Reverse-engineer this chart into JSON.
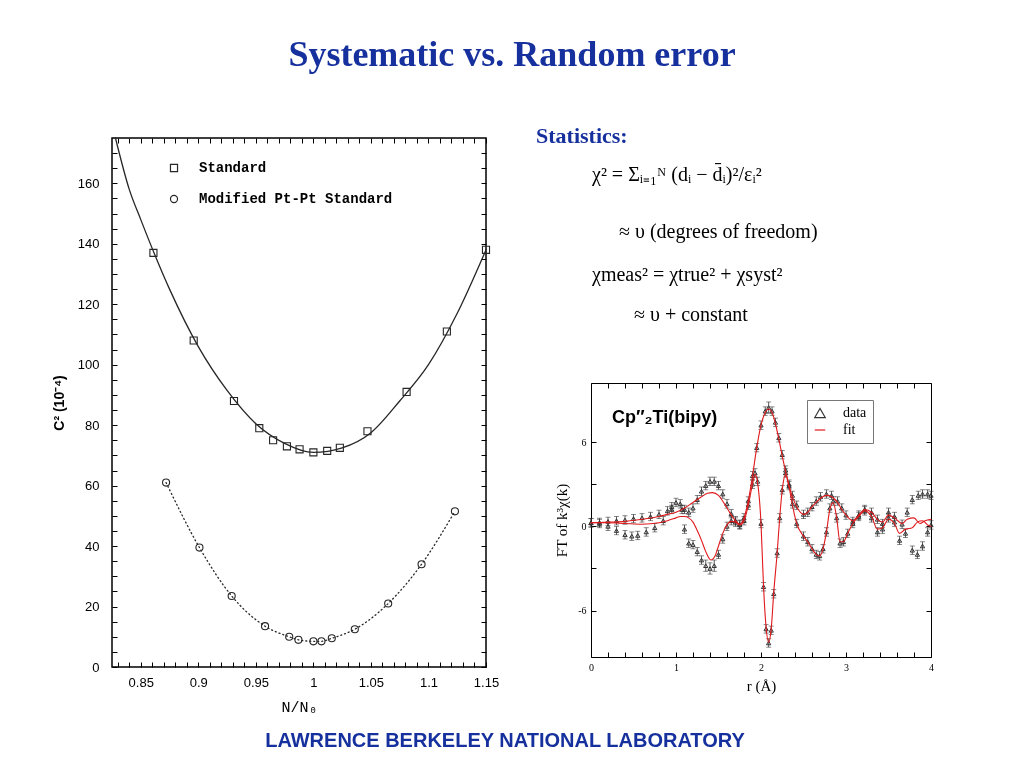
{
  "chart_data": [
    {
      "type": "other",
      "title": "Systematic vs. Random error"
    },
    {
      "type": "scatter",
      "xlabel": "N/N₀",
      "ylabel": "C² (10⁻⁴)",
      "xlim": [
        0.825,
        1.15
      ],
      "ylim": [
        0,
        175
      ],
      "legend": "top left",
      "xticks": [
        {
          "value": 0.83,
          "label": null
        },
        {
          "value": 0.84,
          "label": null
        },
        0.85,
        {
          "value": 0.86,
          "label": null
        },
        {
          "value": 0.87,
          "label": null
        },
        {
          "value": 0.88,
          "label": null
        },
        {
          "value": 0.89,
          "label": null
        },
        0.9,
        {
          "value": 0.91,
          "label": null
        },
        {
          "value": 0.92,
          "label": null
        },
        {
          "value": 0.93,
          "label": null
        },
        {
          "value": 0.94,
          "label": null
        },
        0.95,
        {
          "value": 0.96,
          "label": null
        },
        {
          "value": 0.97,
          "label": null
        },
        {
          "value": 0.98,
          "label": null
        },
        {
          "value": 0.99,
          "label": null
        },
        1,
        {
          "value": 1.01,
          "label": null
        },
        {
          "value": 1.02,
          "label": null
        },
        {
          "value": 1.03,
          "label": null
        },
        {
          "value": 1.04,
          "label": null
        },
        1.05,
        {
          "value": 1.06,
          "label": null
        },
        {
          "value": 1.07,
          "label": null
        },
        {
          "value": 1.08,
          "label": null
        },
        {
          "value": 1.09,
          "label": null
        },
        1.1,
        {
          "value": 1.11,
          "label": null
        },
        {
          "value": 1.12,
          "label": null
        },
        {
          "value": 1.13,
          "label": null
        },
        {
          "value": 1.14,
          "label": null
        },
        1.15
      ],
      "yticks": [
        0,
        {
          "value": 5,
          "label": null
        },
        {
          "value": 10,
          "label": null
        },
        {
          "value": 15,
          "label": null
        },
        20,
        {
          "value": 25,
          "label": null
        },
        {
          "value": 30,
          "label": null
        },
        {
          "value": 35,
          "label": null
        },
        40,
        {
          "value": 45,
          "label": null
        },
        {
          "value": 50,
          "label": null
        },
        {
          "value": 55,
          "label": null
        },
        60,
        {
          "value": 65,
          "label": null
        },
        {
          "value": 70,
          "label": null
        },
        {
          "value": 75,
          "label": null
        },
        80,
        {
          "value": 85,
          "label": null
        },
        {
          "value": 90,
          "label": null
        },
        {
          "value": 95,
          "label": null
        },
        100,
        {
          "value": 105,
          "label": null
        },
        {
          "value": 110,
          "label": null
        },
        {
          "value": 115,
          "label": null
        },
        120,
        {
          "value": 125,
          "label": null
        },
        {
          "value": 130,
          "label": null
        },
        {
          "value": 135,
          "label": null
        },
        140,
        {
          "value": 145,
          "label": null
        },
        {
          "value": 150,
          "label": null
        },
        {
          "value": 155,
          "label": null
        },
        160,
        {
          "value": 165,
          "label": null
        },
        {
          "value": 170,
          "label": null
        }
      ],
      "series": [
        {
          "name": "Standard",
          "type": "scatter",
          "marker": "square",
          "color": "#262626",
          "x": [
            0.861,
            0.896,
            0.931,
            0.953,
            0.965,
            0.977,
            0.988,
            1.0,
            1.012,
            1.023,
            1.047,
            1.081,
            1.116,
            1.15
          ],
          "values": [
            137,
            108,
            88,
            79,
            75,
            73,
            72,
            71,
            71.5,
            72.5,
            78,
            91,
            111,
            138
          ]
        },
        {
          "type": "line",
          "marker": "none",
          "line_style": "solid",
          "color": "#262626",
          "x": [
            0.828,
            0.84,
            0.85,
            0.875,
            0.9,
            0.925,
            0.95,
            0.975,
            1.0,
            1.025,
            1.05,
            1.075,
            1.1,
            1.125,
            1.15
          ],
          "values": [
            175,
            158,
            148,
            125,
            106,
            91.5,
            80.5,
            74,
            71,
            72.5,
            77.5,
            88,
            100,
            117,
            138
          ]
        },
        {
          "name": "Modified Pt-Pt Standard",
          "type": "line",
          "marker": "circle",
          "line_style": "dotted",
          "color": "#262626",
          "x": [
            0.872,
            0.901,
            0.929,
            0.958,
            0.979,
            0.987,
            1.0,
            1.007,
            1.016,
            1.036,
            1.065,
            1.094,
            1.123
          ],
          "values": [
            61,
            39.5,
            23.5,
            13.5,
            10,
            9,
            8.5,
            8.5,
            9.5,
            12.5,
            21,
            34,
            51.5
          ]
        }
      ]
    },
    {
      "type": "other",
      "title": "Statistics:",
      "annotations": [
        "χ² = Σᵢ₌₁ᴺ (dᵢ − d̄ᵢ)²/εᵢ²",
        "≈ υ (degrees of freedom)",
        "χmeas² = χtrue² + χsyst²",
        "≈ υ + constant"
      ]
    },
    {
      "type": "line",
      "xlabel": "r (Å)",
      "ylabel": "FT of k³χ(k)",
      "xlim": [
        0,
        4
      ],
      "ylim": [
        -9.3,
        10.2
      ],
      "legend": "top right",
      "annotations": [
        "Cp″₂Ti(bipy)"
      ],
      "xticks": [
        0,
        {
          "value": 0.2,
          "label": null
        },
        {
          "value": 0.4,
          "label": null
        },
        {
          "value": 0.6,
          "label": null
        },
        {
          "value": 0.8,
          "label": null
        },
        1,
        {
          "value": 1.2,
          "label": null
        },
        {
          "value": 1.4,
          "label": null
        },
        {
          "value": 1.6,
          "label": null
        },
        {
          "value": 1.8,
          "label": null
        },
        2,
        {
          "value": 2.2,
          "label": null
        },
        {
          "value": 2.4,
          "label": null
        },
        {
          "value": 2.6,
          "label": null
        },
        {
          "value": 2.8,
          "label": null
        },
        3,
        {
          "value": 3.2,
          "label": null
        },
        {
          "value": 3.4,
          "label": null
        },
        {
          "value": 3.6,
          "label": null
        },
        {
          "value": 3.8,
          "label": null
        },
        4
      ],
      "yticks": [
        -6,
        {
          "value": -3,
          "label": null
        },
        0,
        {
          "value": 3,
          "label": null
        },
        6
      ],
      "series": [
        {
          "name": "data",
          "type": "scatter",
          "marker": "triangle",
          "color": "#333333",
          "x": [
            0,
            0.1,
            0.2,
            0.3,
            0.4,
            0.5,
            0.6,
            0.7,
            0.8,
            0.9,
            0.95,
            1,
            1.05,
            1.1,
            1.15,
            1.2,
            1.25,
            1.3,
            1.35,
            1.4,
            1.45,
            1.5,
            1.55,
            1.6,
            1.65,
            1.7,
            1.75,
            1.8,
            1.85,
            1.9,
            1.95,
            2,
            2.05,
            2.09,
            2.13,
            2.17,
            2.21,
            2.25,
            2.29,
            2.33,
            2.37,
            2.42,
            2.5,
            2.55,
            2.6,
            2.65,
            2.7,
            2.77,
            2.83,
            2.9,
            2.95,
            3,
            3.08,
            3.15,
            3.22,
            3.3,
            3.37,
            3.43,
            3.5,
            3.57,
            3.66,
            3.72,
            3.78,
            3.85,
            3.9,
            3.96,
            4
          ],
          "values": [
            0.25,
            0.28,
            0.35,
            0.4,
            0.45,
            0.55,
            0.6,
            0.7,
            0.85,
            1.1,
            1.4,
            1.7,
            1.6,
            1.2,
            1.0,
            1.3,
            1.9,
            2.5,
            2.9,
            3.2,
            3.2,
            2.9,
            2.3,
            1.6,
            0.9,
            0.4,
            0.15,
            0.6,
            1.8,
            3.6,
            5.6,
            7.2,
            8.2,
            8.45,
            8.2,
            7.4,
            6.3,
            5.1,
            4.0,
            3.0,
            2.2,
            1.5,
            0.85,
            1.0,
            1.4,
            1.8,
            2.1,
            2.3,
            2.2,
            1.8,
            1.3,
            0.8,
            0.35,
            0.8,
            1.2,
            1.0,
            0.5,
            0.2,
            1.0,
            0.7,
            0.15,
            1.0,
            1.9,
            2.2,
            2.3,
            2.3,
            2.2
          ],
          "errors": [
            0.3,
            0.3,
            0.3,
            0.3,
            0.3,
            0.3,
            0.3,
            0.3,
            0.3,
            0.3,
            0.3,
            0.3,
            0.3,
            0.3,
            0.3,
            0.3,
            0.3,
            0.3,
            0.3,
            0.3,
            0.3,
            0.3,
            0.3,
            0.3,
            0.3,
            0.3,
            0.3,
            0.3,
            0.3,
            0.3,
            0.3,
            0.3,
            0.3,
            0.4,
            0.3,
            0.3,
            0.3,
            0.3,
            0.3,
            0.3,
            0.3,
            0.3,
            0.3,
            0.3,
            0.3,
            0.3,
            0.3,
            0.3,
            0.3,
            0.3,
            0.3,
            0.3,
            0.3,
            0.3,
            0.3,
            0.3,
            0.3,
            0.3,
            0.3,
            0.3,
            0.3,
            0.3,
            0.3,
            0.3,
            0.3,
            0.3,
            0.3
          ]
        },
        {
          "type": "scatter",
          "marker": "triangle",
          "color": "#333333",
          "x": [
            0,
            0.1,
            0.2,
            0.3,
            0.4,
            0.48,
            0.55,
            0.65,
            0.75,
            0.85,
            0.95,
            1.07,
            1.1,
            1.15,
            1.2,
            1.25,
            1.3,
            1.35,
            1.4,
            1.45,
            1.5,
            1.55,
            1.6,
            1.65,
            1.7,
            1.75,
            1.8,
            1.85,
            1.9,
            1.93,
            1.96,
            2,
            2.03,
            2.06,
            2.09,
            2.12,
            2.15,
            2.19,
            2.22,
            2.25,
            2.29,
            2.33,
            2.37,
            2.42,
            2.5,
            2.55,
            2.6,
            2.65,
            2.69,
            2.73,
            2.77,
            2.81,
            2.85,
            2.89,
            2.93,
            2.97,
            3.02,
            3.08,
            3.15,
            3.22,
            3.3,
            3.37,
            3.43,
            3.5,
            3.57,
            3.63,
            3.7,
            3.78,
            3.84,
            3.9,
            3.96,
            4
          ],
          "values": [
            0.25,
            0.2,
            0.0,
            -0.3,
            -0.6,
            -0.7,
            -0.65,
            -0.4,
            -0.1,
            0.4,
            1.2,
            1.2,
            -0.2,
            -1.2,
            -1.3,
            -1.8,
            -2.4,
            -2.8,
            -3.0,
            -2.8,
            -2.0,
            -0.9,
            0.0,
            0.4,
            0.3,
            0.1,
            0.4,
            1.5,
            3.0,
            3.8,
            3.2,
            0.2,
            -4.3,
            -7.3,
            -8.3,
            -7.4,
            -4.8,
            -1.9,
            0.6,
            2.6,
            3.8,
            2.9,
            1.6,
            0.2,
            -0.7,
            -1.1,
            -1.6,
            -2.0,
            -2.1,
            -1.6,
            -0.4,
            1.3,
            1.8,
            0.6,
            -1.2,
            -1.1,
            -0.5,
            0.2,
            0.7,
            1.1,
            0.6,
            -0.4,
            -0.2,
            0.6,
            0.3,
            -1.0,
            -0.5,
            -1.7,
            -2.0,
            -1.4,
            -0.4,
            0.1
          ],
          "errors": [
            0.3,
            0.3,
            0.3,
            0.3,
            0.3,
            0.3,
            0.3,
            0.3,
            0.3,
            0.3,
            0.3,
            0.3,
            0.3,
            0.3,
            0.3,
            0.3,
            0.3,
            0.4,
            0.4,
            0.4,
            0.3,
            0.3,
            0.3,
            0.3,
            0.3,
            0.3,
            0.3,
            0.3,
            0.3,
            0.3,
            0.3,
            0.3,
            0.3,
            0.3,
            0.3,
            0.3,
            0.3,
            0.3,
            0.3,
            0.3,
            0.3,
            0.3,
            0.3,
            0.3,
            0.3,
            0.3,
            0.3,
            0.3,
            0.3,
            0.3,
            0.3,
            0.3,
            0.3,
            0.3,
            0.3,
            0.3,
            0.3,
            0.3,
            0.3,
            0.3,
            0.3,
            0.3,
            0.3,
            0.3,
            0.3,
            0.3,
            0.3,
            0.3,
            0.3,
            0.3,
            0.3,
            0.3
          ]
        },
        {
          "name": "fit",
          "type": "line",
          "marker": "none",
          "line_style": "solid",
          "color": "#e0191c",
          "x": [
            0,
            0.2,
            0.4,
            0.6,
            0.8,
            0.9,
            1,
            1.1,
            1.2,
            1.3,
            1.37,
            1.43,
            1.5,
            1.57,
            1.64,
            1.7,
            1.75,
            1.8,
            1.85,
            1.9,
            1.95,
            2,
            2.05,
            2.09,
            2.13,
            2.17,
            2.21,
            2.25,
            2.29,
            2.33,
            2.37,
            2.42,
            2.5,
            2.55,
            2.6,
            2.65,
            2.7,
            2.77,
            2.83,
            2.9,
            2.95,
            3,
            3.08,
            3.15,
            3.22,
            3.3,
            3.37,
            3.43,
            3.5,
            3.57,
            3.66,
            3.72,
            3.8,
            3.87,
            3.93,
            4
          ],
          "values": [
            0.25,
            0.3,
            0.35,
            0.5,
            0.7,
            0.85,
            1.0,
            1.3,
            1.7,
            2.1,
            2.35,
            2.4,
            2.2,
            1.6,
            0.9,
            0.4,
            0.15,
            0.6,
            1.8,
            3.6,
            5.6,
            7.2,
            8.1,
            8.35,
            8.1,
            7.3,
            6.2,
            5.0,
            3.9,
            2.9,
            2.1,
            1.4,
            0.85,
            1.0,
            1.4,
            1.7,
            2.0,
            2.2,
            2.1,
            1.7,
            1.2,
            0.8,
            0.4,
            0.8,
            1.2,
            1.0,
            0.5,
            0.3,
            0.8,
            0.6,
            0.2,
            0.5,
            0.6,
            0.2,
            0.4,
            0.5
          ]
        },
        {
          "type": "line",
          "marker": "none",
          "line_style": "solid",
          "color": "#e0191c",
          "x": [
            0,
            0.2,
            0.4,
            0.6,
            0.8,
            0.9,
            1,
            1.05,
            1.1,
            1.15,
            1.2,
            1.25,
            1.3,
            1.35,
            1.41,
            1.46,
            1.5,
            1.55,
            1.6,
            1.65,
            1.7,
            1.75,
            1.8,
            1.85,
            1.9,
            1.93,
            1.96,
            2,
            2.03,
            2.06,
            2.09,
            2.12,
            2.15,
            2.19,
            2.22,
            2.25,
            2.29,
            2.33,
            2.37,
            2.42,
            2.5,
            2.55,
            2.6,
            2.65,
            2.69,
            2.73,
            2.77,
            2.81,
            2.85,
            2.89,
            2.93,
            2.97,
            3.02,
            3.08,
            3.15,
            3.22,
            3.3,
            3.37,
            3.43,
            3.5,
            3.57,
            3.63,
            3.7,
            3.78,
            3.84,
            3.9,
            3.96,
            4
          ],
          "values": [
            0.25,
            0.25,
            0.2,
            0.15,
            0.25,
            0.4,
            0.6,
            0.7,
            0.7,
            0.6,
            0.3,
            -0.3,
            -1.0,
            -1.8,
            -2.4,
            -2.1,
            -1.4,
            -0.5,
            0.1,
            0.35,
            0.3,
            0.1,
            0.4,
            1.5,
            3.0,
            3.7,
            3.1,
            0.2,
            -4.3,
            -7.2,
            -8.25,
            -7.3,
            -4.7,
            -1.9,
            0.6,
            2.6,
            3.7,
            2.8,
            1.5,
            0.2,
            -0.7,
            -1.1,
            -1.6,
            -2.0,
            -2.1,
            -1.6,
            -0.4,
            1.2,
            1.7,
            0.6,
            -1.1,
            -1.1,
            -0.5,
            0.2,
            0.7,
            1.1,
            0.7,
            -0.2,
            -0.1,
            0.5,
            0.2,
            -0.5,
            -0.2,
            -0.1,
            0.3,
            0.4,
            0.1,
            0
          ]
        }
      ]
    },
    {
      "type": "other",
      "annotations": [
        "LAWRENCE BERKELEY NATIONAL LABORATORY"
      ]
    }
  ]
}
